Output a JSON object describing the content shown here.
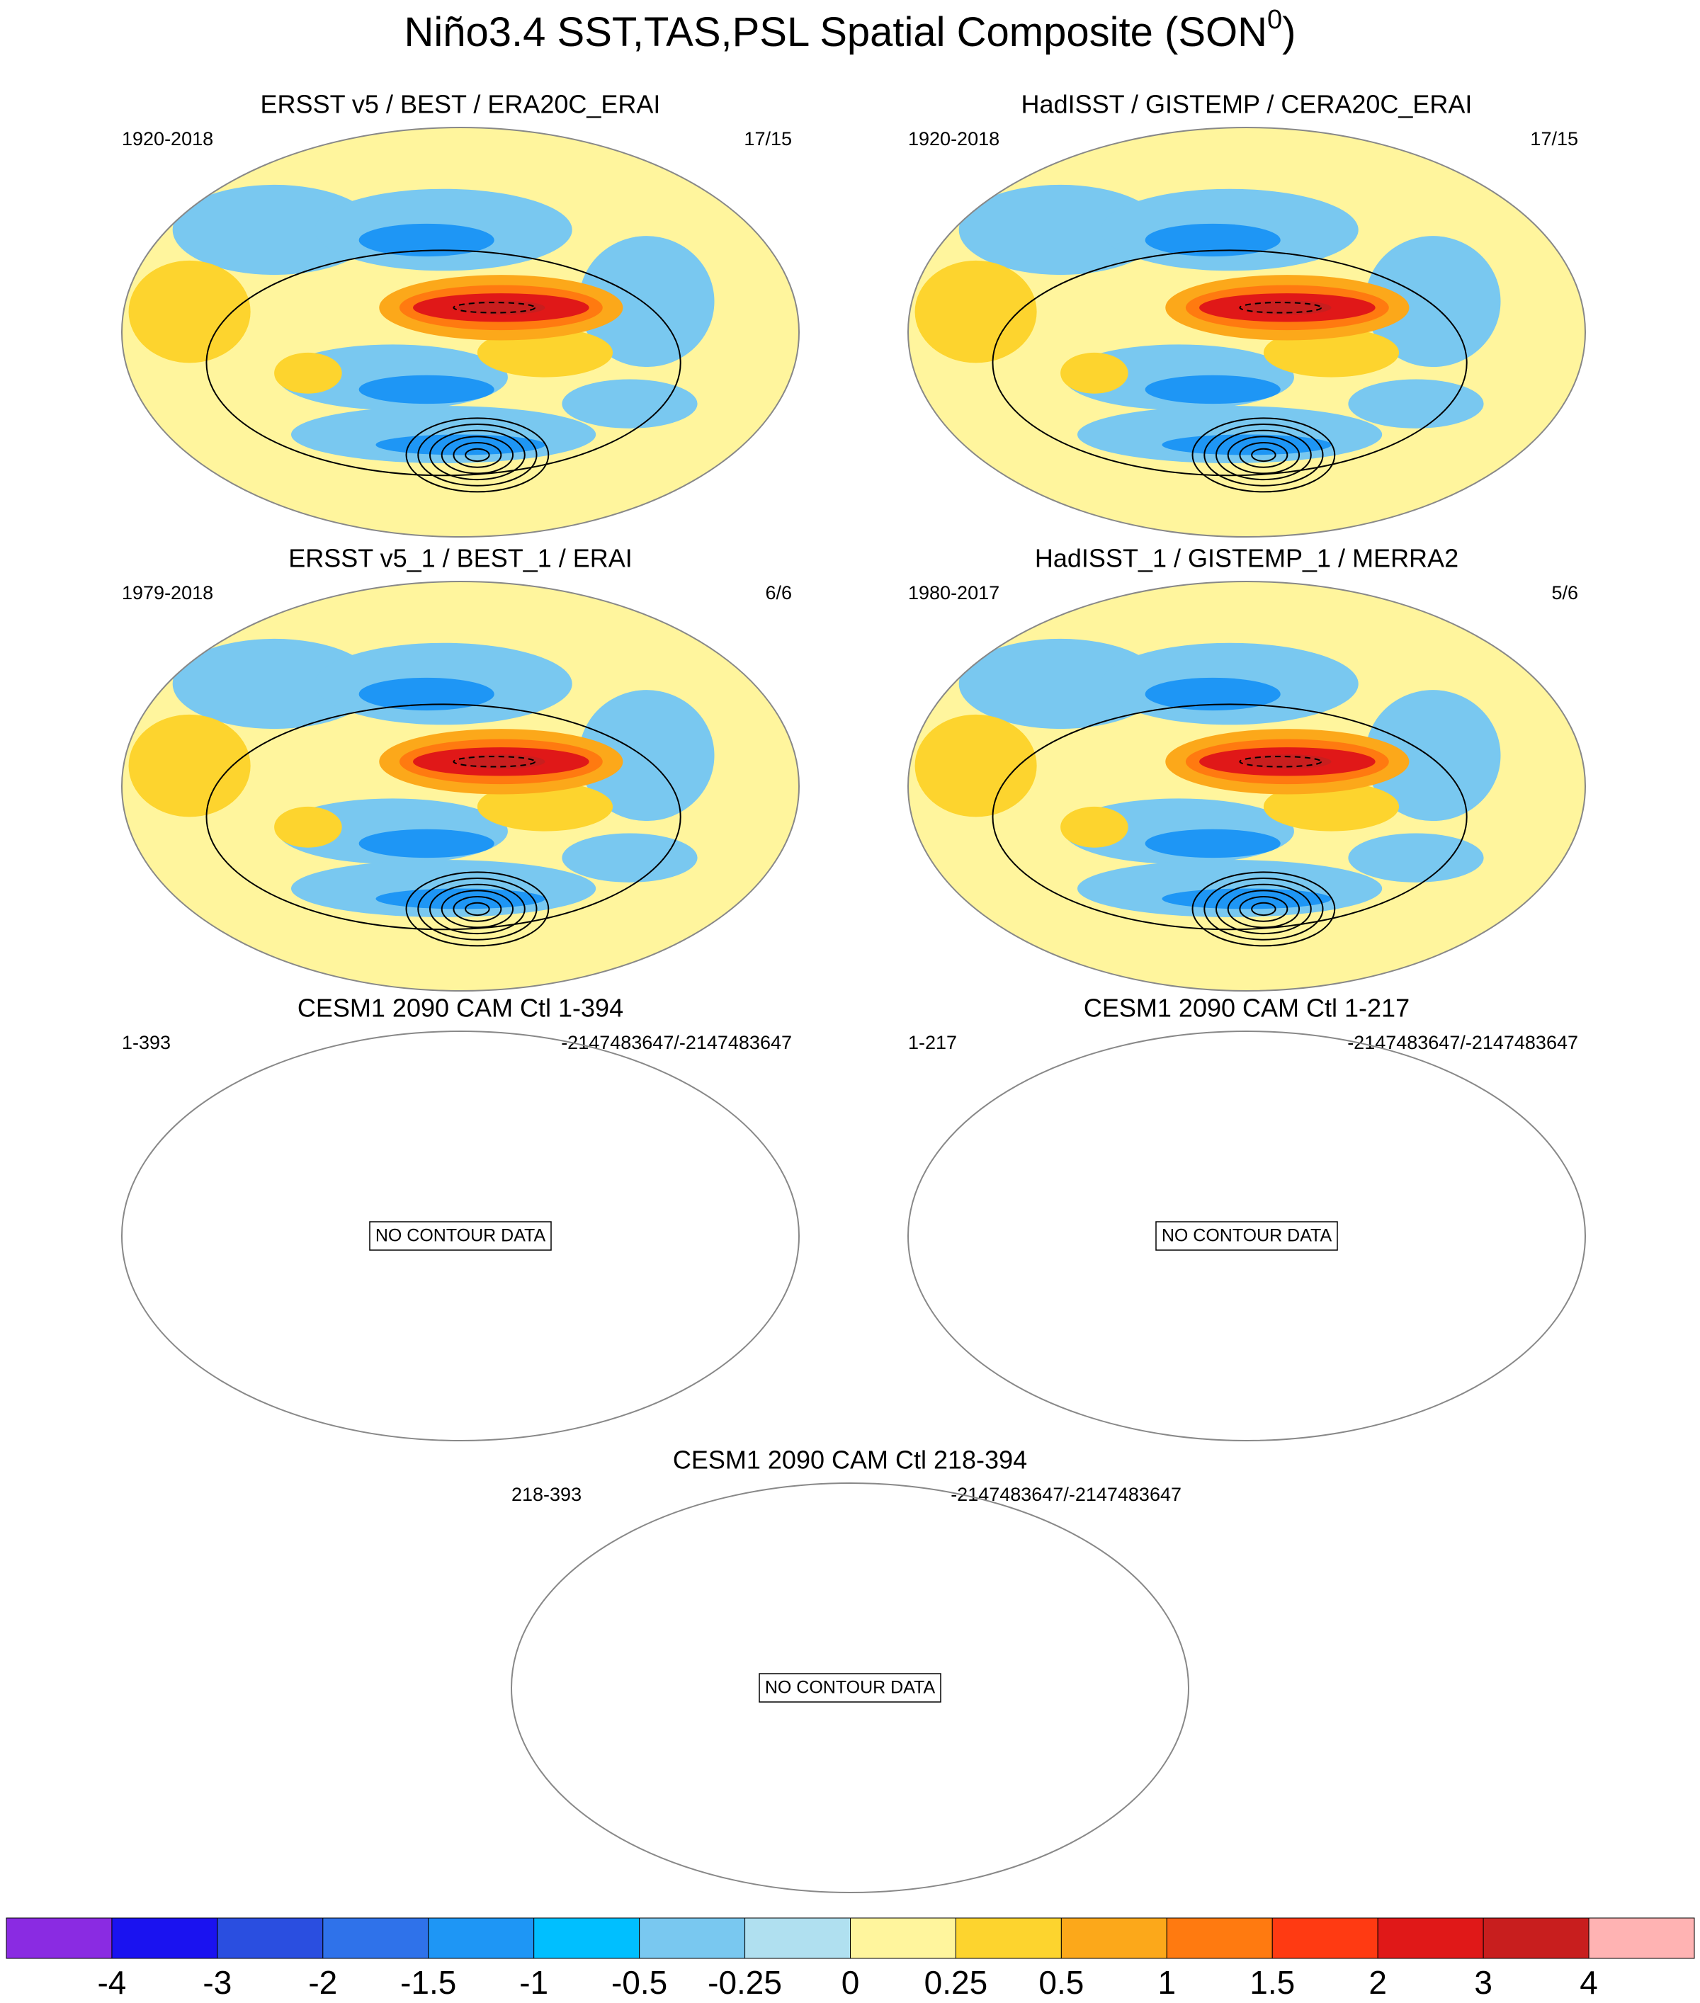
{
  "header": {
    "title": "Niño3.4 SST,TAS,PSL Spatial Composite (SON",
    "title_superscript": "0",
    "title_close": ")"
  },
  "panels": [
    {
      "title": "ERSST v5 / BEST / ERA20C_ERAI",
      "left": "1920-2018",
      "right": "17/15"
    },
    {
      "title": "HadISST / GISTEMP / CERA20C_ERAI",
      "left": "1920-2018",
      "right": "17/15"
    },
    {
      "title": "ERSST v5_1 / BEST_1 / ERAI",
      "left": "1979-2018",
      "right": "6/6"
    },
    {
      "title": "HadISST_1 / GISTEMP_1 / MERRA2",
      "left": "1980-2017",
      "right": "5/6"
    },
    {
      "title": "CESM1 2090 CAM Ctl 1-394",
      "left": "1-393",
      "right": "-2147483647/-2147483647",
      "no_data_label": "NO CONTOUR DATA"
    },
    {
      "title": "CESM1 2090 CAM Ctl 1-217",
      "left": "1-217",
      "right": "-2147483647/-2147483647",
      "no_data_label": "NO CONTOUR DATA"
    },
    {
      "title": "CESM1 2090 CAM Ctl 218-394",
      "left": "218-393",
      "right": "-2147483647/-2147483647",
      "no_data_label": "NO CONTOUR DATA"
    }
  ],
  "colorbar": {
    "colors": [
      "#8a2be2",
      "#1a12f0",
      "#2a4ee0",
      "#2f72ea",
      "#1e96f5",
      "#00bfff",
      "#79c8f0",
      "#b0e0f0",
      "#fff59d",
      "#fdd42e",
      "#fca81a",
      "#ff7a10",
      "#ff3a12",
      "#e01818",
      "#c81e1e",
      "#ffb3b3"
    ],
    "ticks": [
      -4,
      -3,
      -2,
      -1.5,
      -1,
      -0.5,
      -0.25,
      0,
      0.25,
      0.5,
      1,
      1.5,
      2,
      3,
      4
    ]
  }
}
